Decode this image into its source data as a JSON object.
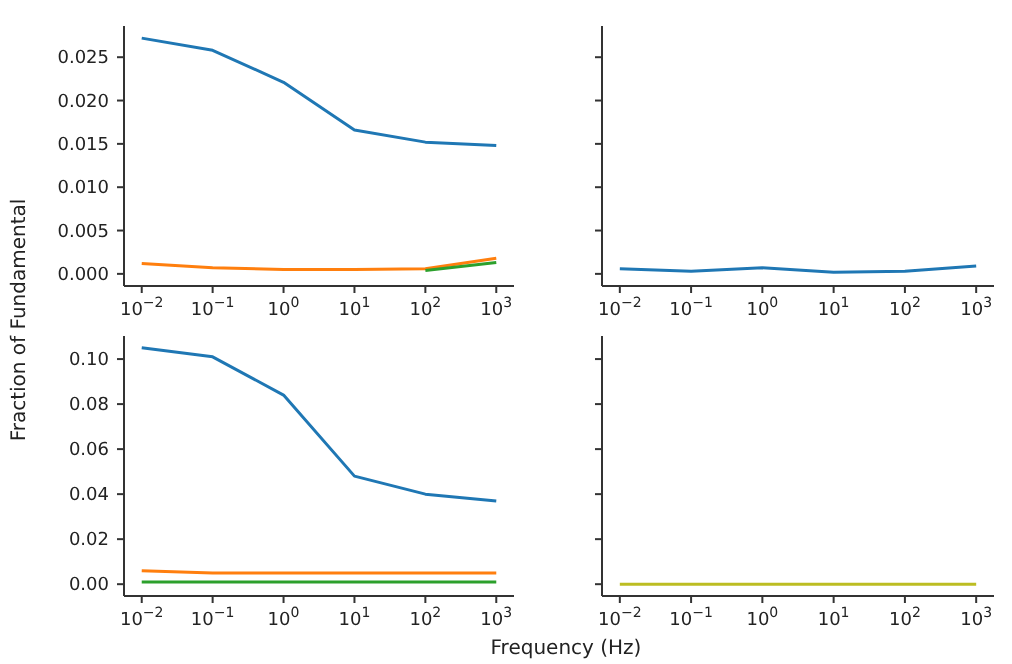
{
  "chart_data": [
    {
      "type": "line",
      "ylabel": "Fraction of Fundamental",
      "x": [
        0.01,
        0.1,
        1,
        10,
        100,
        1000
      ],
      "log": "x",
      "grid": false,
      "legend": false,
      "xlim": [
        0.005623,
        1778.3
      ],
      "ylim": [
        -0.0014,
        0.0286
      ],
      "xticks": [
        {
          "value": 0.01,
          "label": "10$^{−2}$"
        },
        {
          "value": 0.1,
          "label": "10$^{−1}$"
        },
        {
          "value": 1,
          "label": "10$^{0}$"
        },
        {
          "value": 10,
          "label": "10$^{1}$"
        },
        {
          "value": 100,
          "label": "10$^{2}$"
        },
        {
          "value": 1000,
          "label": "10$^{3}$"
        }
      ],
      "yticks": [
        {
          "value": 0,
          "label": "0.000"
        },
        0.005,
        {
          "value": 0.01,
          "label": "0.010"
        },
        0.015,
        {
          "value": 0.02,
          "label": "0.020"
        },
        0.025
      ],
      "series": [
        {
          "color": "#1f77b4",
          "values": [
            0.0272,
            0.0258,
            0.0221,
            0.0166,
            0.0152,
            0.0148
          ]
        },
        {
          "color": "#ff7f0e",
          "values": [
            0.0012,
            0.0007,
            0.0005,
            0.0005,
            0.0006,
            0.0018
          ]
        },
        {
          "color": "#2ca02c",
          "values": [
            null,
            null,
            null,
            null,
            0.0004,
            0.0013
          ]
        }
      ]
    },
    {
      "type": "line",
      "x": [
        0.01,
        0.1,
        1,
        10,
        100,
        1000
      ],
      "log": "x",
      "grid": false,
      "legend": false,
      "tick_labels": "x",
      "xlim": [
        0.005623,
        1778.3
      ],
      "ylim": [
        -0.0014,
        0.0286
      ],
      "xticks": [
        {
          "value": 0.01,
          "label": "10$^{−2}$"
        },
        {
          "value": 0.1,
          "label": "10$^{−1}$"
        },
        {
          "value": 1,
          "label": "10$^{0}$"
        },
        {
          "value": 10,
          "label": "10$^{1}$"
        },
        {
          "value": 100,
          "label": "10$^{2}$"
        },
        {
          "value": 1000,
          "label": "10$^{3}$"
        }
      ],
      "yticks": [
        {
          "value": 0,
          "label": null
        },
        {
          "value": 0.005,
          "label": null
        },
        {
          "value": 0.01,
          "label": null
        },
        {
          "value": 0.015,
          "label": null
        },
        {
          "value": 0.02,
          "label": null
        },
        {
          "value": 0.025,
          "label": null
        }
      ],
      "series": [
        {
          "color": "#1f77b4",
          "values": [
            0.0006,
            0.0003,
            0.0007,
            0.0002,
            0.0003,
            0.0009
          ]
        }
      ]
    },
    {
      "type": "line",
      "xlabel": "Frequency (Hz)",
      "x": [
        0.01,
        0.1,
        1,
        10,
        100,
        1000
      ],
      "log": "x",
      "grid": false,
      "legend": false,
      "xlim": [
        0.005623,
        1778.3
      ],
      "ylim": [
        -0.00525,
        0.11025
      ],
      "xticks": [
        {
          "value": 0.01,
          "label": "10$^{−2}$"
        },
        {
          "value": 0.1,
          "label": "10$^{−1}$"
        },
        {
          "value": 1,
          "label": "10$^{0}$"
        },
        {
          "value": 10,
          "label": "10$^{1}$"
        },
        {
          "value": 100,
          "label": "10$^{2}$"
        },
        {
          "value": 1000,
          "label": "10$^{3}$"
        }
      ],
      "yticks": [
        {
          "value": 0,
          "label": "0.00"
        },
        0.02,
        0.04,
        0.06,
        0.08,
        {
          "value": 0.1,
          "label": "0.10"
        }
      ],
      "series": [
        {
          "color": "#1f77b4",
          "values": [
            0.105,
            0.101,
            0.084,
            0.048,
            0.04,
            0.037
          ]
        },
        {
          "color": "#ff7f0e",
          "values": [
            0.006,
            0.005,
            0.005,
            0.005,
            0.005,
            0.005
          ]
        },
        {
          "color": "#2ca02c",
          "values": [
            0.001,
            0.001,
            0.001,
            0.001,
            0.001,
            0.001
          ]
        }
      ]
    },
    {
      "type": "line",
      "x": [
        0.01,
        0.1,
        1,
        10,
        100,
        1000
      ],
      "log": "x",
      "grid": false,
      "legend": false,
      "tick_labels": "x",
      "xlim": [
        0.005623,
        1778.3
      ],
      "ylim": [
        -0.00525,
        0.11025
      ],
      "xticks": [
        {
          "value": 0.01,
          "label": "10$^{−2}$"
        },
        {
          "value": 0.1,
          "label": "10$^{−1}$"
        },
        {
          "value": 1,
          "label": "10$^{0}$"
        },
        {
          "value": 10,
          "label": "10$^{1}$"
        },
        {
          "value": 100,
          "label": "10$^{2}$"
        },
        {
          "value": 1000,
          "label": "10$^{3}$"
        }
      ],
      "yticks": [
        {
          "value": 0,
          "label": null
        },
        {
          "value": 0.02,
          "label": null
        },
        {
          "value": 0.04,
          "label": null
        },
        {
          "value": 0.06,
          "label": null
        },
        {
          "value": 0.08,
          "label": null
        },
        {
          "value": 0.1,
          "label": null
        }
      ],
      "series": [
        {
          "color": "#bcbd22",
          "values": [
            0,
            0,
            0,
            0,
            0,
            0
          ]
        }
      ]
    }
  ]
}
